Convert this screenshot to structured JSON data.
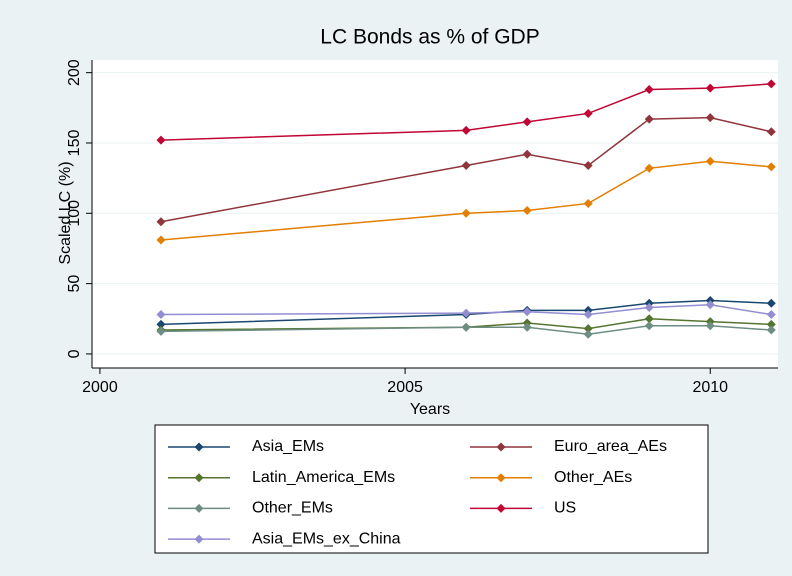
{
  "chart_data": {
    "type": "line",
    "title": "LC Bonds as % of GDP",
    "xlabel": "Years",
    "ylabel": "Scaled LC (%)",
    "x": [
      2001,
      2006,
      2007,
      2008,
      2009,
      2010,
      2011
    ],
    "xlim": [
      1999.87,
      2011.11
    ],
    "xticks": [
      2000,
      2005,
      2010
    ],
    "ylim": [
      -10,
      209
    ],
    "yticks": [
      0,
      50,
      100,
      150,
      200
    ],
    "grid": true,
    "series": [
      {
        "name": "Asia_EMs",
        "color": "#1a476f",
        "values": [
          21,
          28,
          31,
          31,
          36,
          38,
          36
        ]
      },
      {
        "name": "Euro_area_AEs",
        "color": "#90353b",
        "values": [
          94,
          134,
          142,
          134,
          167,
          168,
          158
        ]
      },
      {
        "name": "Latin_America_EMs",
        "color": "#55752f",
        "values": [
          17,
          19,
          22,
          18,
          25,
          23,
          21
        ]
      },
      {
        "name": "Other_AEs",
        "color": "#e37e00",
        "values": [
          81,
          100,
          102,
          107,
          132,
          137,
          133
        ]
      },
      {
        "name": "Other_EMs",
        "color": "#6e8e84",
        "values": [
          16,
          19,
          19,
          14,
          20,
          20,
          17
        ]
      },
      {
        "name": "US",
        "color": "#c10534",
        "values": [
          152,
          159,
          165,
          171,
          188,
          189,
          192
        ]
      },
      {
        "name": "Asia_EMs_ex_China",
        "color": "#938dd2",
        "values": [
          28,
          29,
          30,
          28,
          33,
          35,
          28
        ]
      }
    ]
  }
}
